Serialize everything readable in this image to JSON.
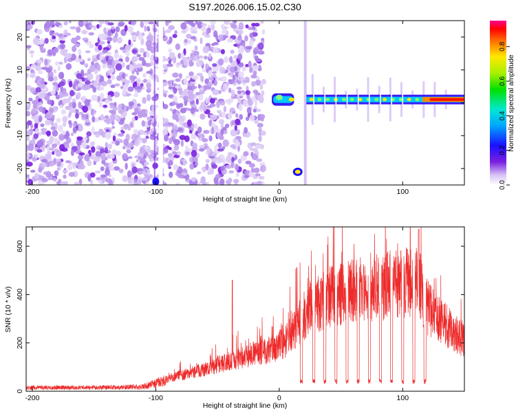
{
  "title": "S197.2026.006.15.02.C30",
  "chart_data": [
    {
      "type": "heatmap",
      "xlabel": "Height of straight line (km)",
      "ylabel": "Frequency (Hz)",
      "xlim": [
        -205,
        150
      ],
      "ylim": [
        -25,
        25
      ],
      "xticks": [
        -200,
        -100,
        0,
        100
      ],
      "yticks": [
        -20,
        -10,
        0,
        10,
        20
      ],
      "colorbar": {
        "label": "Normalized spectral amplitude",
        "range": [
          0,
          0.95
        ],
        "ticks": [
          0.0,
          0.2,
          0.4,
          0.6,
          0.8
        ]
      },
      "regions": [
        {
          "x_range": [
            -205,
            -12
          ],
          "description": "scattered low-amplitude noise"
        },
        {
          "x_range": [
            -6,
            12
          ],
          "frequency_hz": 1,
          "description": "bright narrowband signal"
        },
        {
          "x_range": [
            12,
            20
          ],
          "frequency_hz": -21,
          "description": "isolated peak"
        },
        {
          "x_range": [
            22,
            150
          ],
          "frequency_hz": 1,
          "description": "continuous narrowband trace with periodic gaps"
        }
      ]
    },
    {
      "type": "line",
      "xlabel": "Height of straight line (km)",
      "ylabel": "SNR (10 * v/v)",
      "xlim": [
        -205,
        150
      ],
      "ylim": [
        0,
        680
      ],
      "xticks": [
        -200,
        -100,
        0,
        100
      ],
      "yticks": [
        0,
        200,
        400,
        600
      ],
      "series_color": "#ee2a2a",
      "envelope": {
        "x": [
          -205,
          -150,
          -110,
          -92,
          -80,
          -60,
          -40,
          -20,
          -5,
          5,
          15,
          25,
          40,
          60,
          80,
          100,
          112,
          120,
          135,
          150
        ],
        "y": [
          20,
          20,
          25,
          60,
          80,
          110,
          150,
          190,
          210,
          250,
          330,
          420,
          470,
          510,
          520,
          540,
          560,
          420,
          330,
          250
        ]
      },
      "gaps_x": [
        18,
        28,
        37,
        46,
        55,
        64,
        73,
        82,
        91,
        100,
        109,
        118
      ],
      "gap_value": 30
    }
  ]
}
